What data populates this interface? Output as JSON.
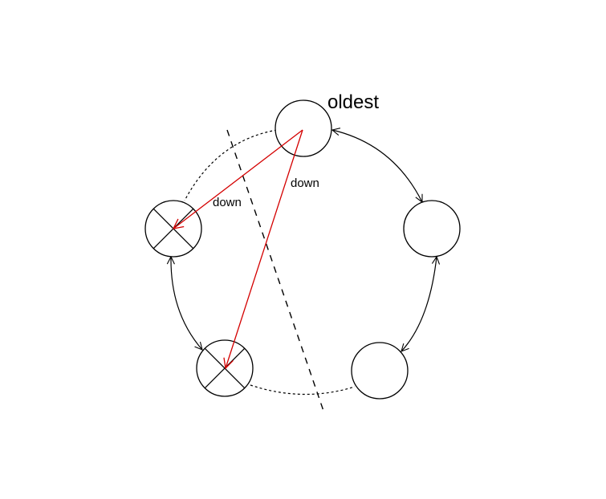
{
  "diagram": {
    "oldest_label": "oldest",
    "down_label_left": "down",
    "down_label_right": "down",
    "colors": {
      "node_stroke": "#000000",
      "down_arrow": "#d40000",
      "background": "#ffffff"
    },
    "nodes": [
      {
        "id": "top",
        "status": "live",
        "tag": "oldest"
      },
      {
        "id": "right",
        "status": "live"
      },
      {
        "id": "bottom-right",
        "status": "live"
      },
      {
        "id": "bottom-left",
        "status": "down"
      },
      {
        "id": "left",
        "status": "down"
      }
    ]
  }
}
